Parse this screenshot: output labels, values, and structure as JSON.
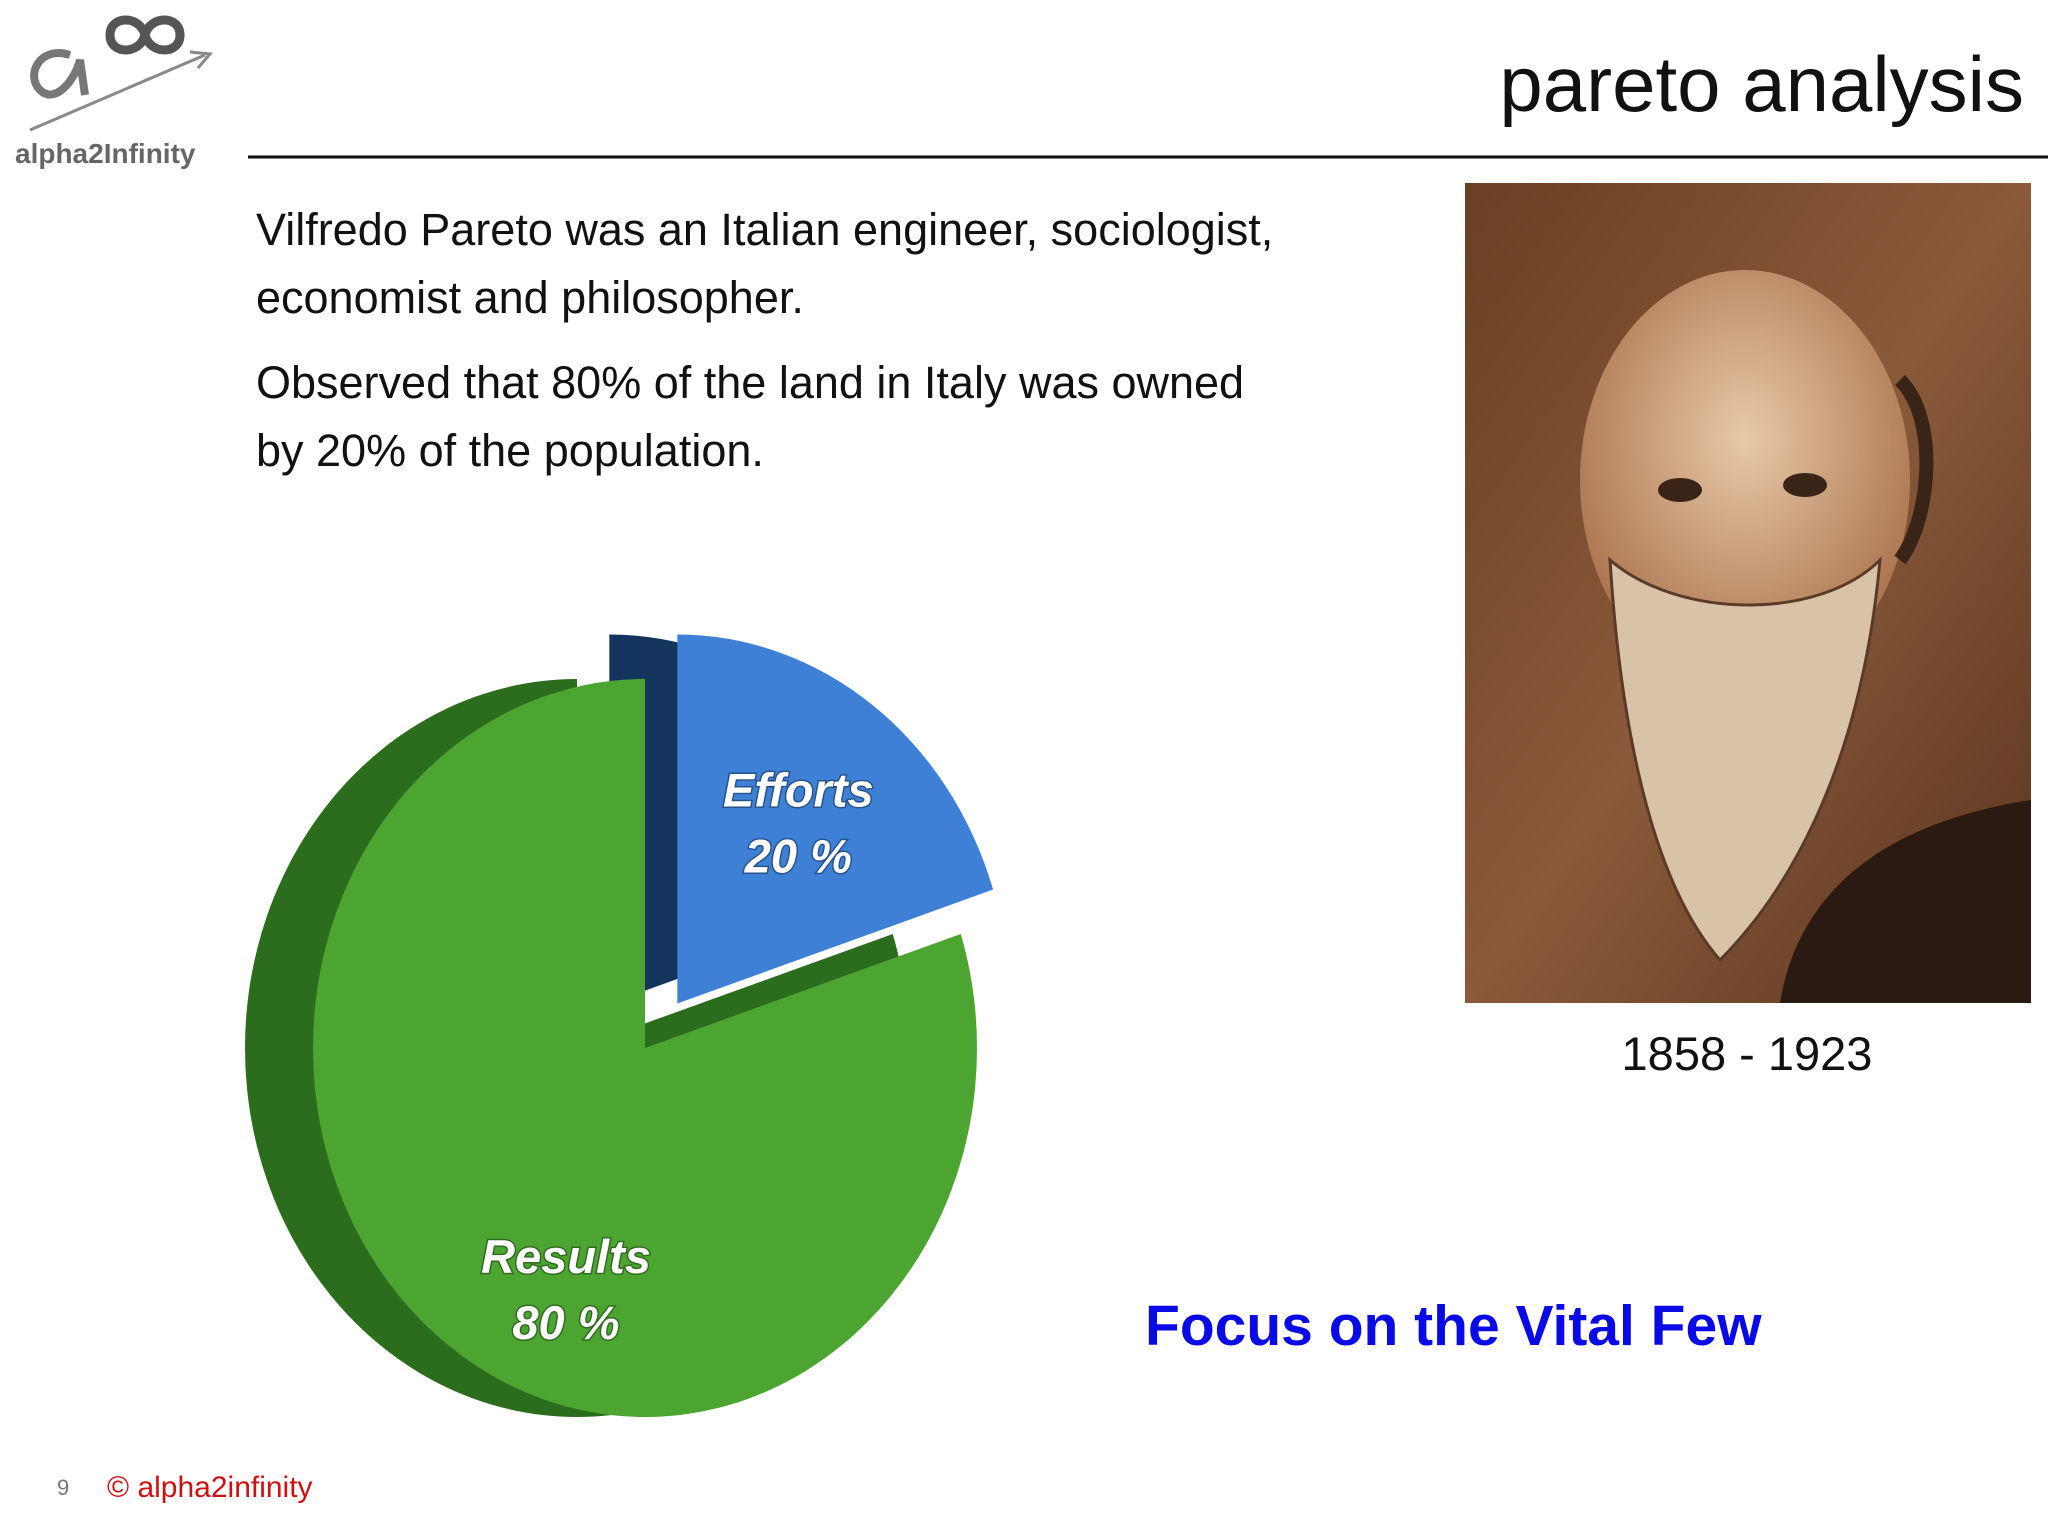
{
  "header": {
    "logo_text": "alpha2Infinity",
    "title": "pareto analysis"
  },
  "body": {
    "paragraphs": [
      [
        "Vilfredo Pareto was an Italian engineer, sociologist,",
        "economist and philosopher."
      ],
      [
        "Observed that 80% of the land in Italy was owned",
        "by 20% of the population."
      ]
    ]
  },
  "chart_data": {
    "type": "pie",
    "categories": [
      "Efforts",
      "Results"
    ],
    "values": [
      20,
      80
    ],
    "value_labels": [
      "20 %",
      "80 %"
    ],
    "colors": [
      "#3d80d6",
      "#4ba530"
    ],
    "depth_colors": [
      "#14345e",
      "#2b6d1d"
    ],
    "exploded": "Efforts"
  },
  "portrait": {
    "caption": "1858 - 1923"
  },
  "callout": "Focus on the Vital Few",
  "footer": {
    "page": "9",
    "copyright": "© alpha2infinity"
  }
}
